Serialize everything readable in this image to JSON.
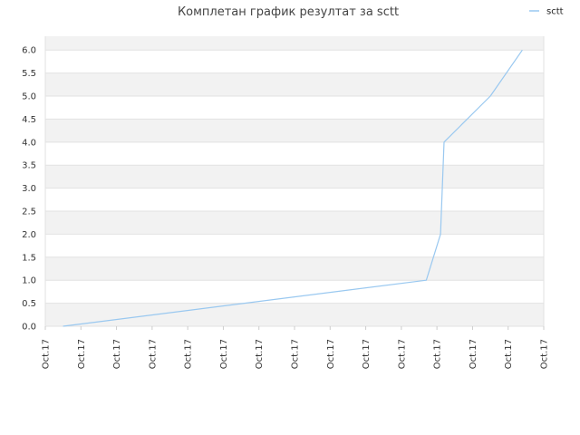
{
  "chart_data": {
    "type": "line",
    "title": "Комплетан график резултат за sctt",
    "xlabel": "",
    "ylabel": "",
    "ylim": [
      0,
      6.3
    ],
    "yticks": [
      "0.0",
      "0.5",
      "1.0",
      "1.5",
      "2.0",
      "2.5",
      "3.0",
      "3.5",
      "4.0",
      "4.5",
      "5.0",
      "5.5",
      "6.0"
    ],
    "xticks": [
      "Oct.17",
      "Oct.17",
      "Oct.17",
      "Oct.17",
      "Oct.17",
      "Oct.17",
      "Oct.17",
      "Oct.17",
      "Oct.17",
      "Oct.17",
      "Oct.17",
      "Oct.17",
      "Oct.17",
      "Oct.17",
      "Oct.17"
    ],
    "legend": {
      "position": "top-right"
    },
    "grid": true,
    "series": [
      {
        "name": "sctt",
        "color": "#99c8f0",
        "x": [
          0.5,
          10.7,
          11.1,
          11.2,
          12.5,
          13.4
        ],
        "y": [
          0,
          1,
          2,
          4,
          5,
          6
        ]
      }
    ],
    "colors": {
      "band_shade": "#f2f2f2",
      "grid_line": "#e2e2e2"
    }
  }
}
